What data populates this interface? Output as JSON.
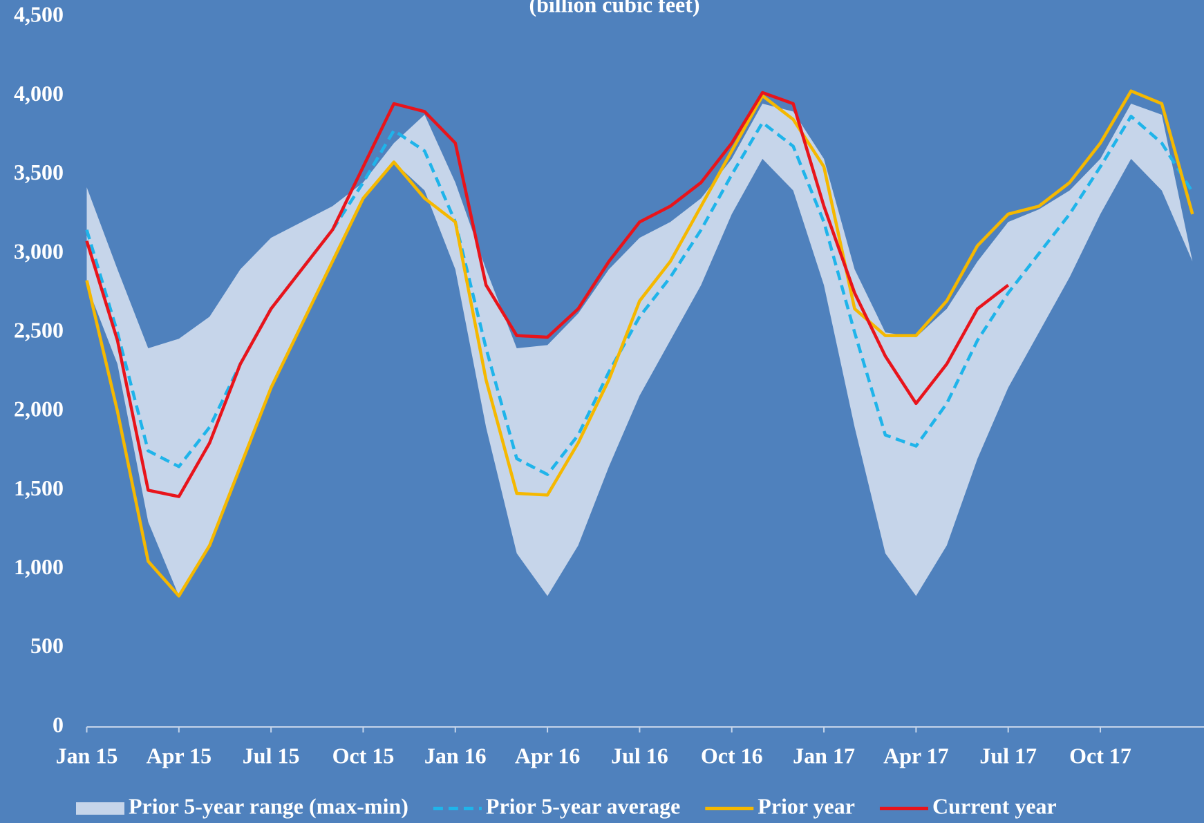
{
  "chart_data": {
    "type": "line",
    "subtitle": "(billion cubic feet)",
    "categories": [
      "Jan 15",
      null,
      null,
      "Apr 15",
      null,
      null,
      "Jul 15",
      null,
      null,
      "Oct 15",
      null,
      null,
      "Jan 16",
      null,
      null,
      "Apr 16",
      null,
      null,
      "Jul 16",
      null,
      null,
      "Oct 16",
      null,
      null,
      "Jan 17",
      null,
      null,
      "Apr 17",
      null,
      null,
      "Jul 17",
      null,
      null,
      "Oct 17",
      null,
      null,
      null
    ],
    "ylim": [
      0,
      4500
    ],
    "yticks": [
      0,
      500,
      {
        "value": 1000,
        "label": "1,000"
      },
      {
        "value": 1500,
        "label": "1,500"
      },
      {
        "value": 2000,
        "label": "2,000"
      },
      {
        "value": 2500,
        "label": "2,500"
      },
      {
        "value": 3000,
        "label": "3,000"
      },
      {
        "value": 3500,
        "label": "3,500"
      },
      {
        "value": 4000,
        "label": "4,000"
      },
      {
        "value": 4500,
        "label": "4,500"
      }
    ],
    "range": {
      "name": "Prior 5-year range (max-min)",
      "color": "#c6d5ea",
      "max": [
        3420,
        2900,
        2400,
        2460,
        2600,
        2900,
        3100,
        3200,
        3300,
        3450,
        3700,
        3880,
        3450,
        2900,
        2400,
        2420,
        2620,
        2900,
        3100,
        3200,
        3350,
        3600,
        3950,
        3900,
        3600,
        2900,
        2500,
        2470,
        2650,
        2950,
        3200,
        3280,
        3400,
        3600,
        3950,
        3880,
        2950
      ],
      "min": [
        2800,
        2300,
        1300,
        830,
        1150,
        1650,
        2150,
        2550,
        2950,
        3350,
        3580,
        3400,
        2900,
        1900,
        1100,
        830,
        1150,
        1650,
        2100,
        2450,
        2800,
        3250,
        3600,
        3400,
        2800,
        1900,
        1100,
        830,
        1150,
        1700,
        2150,
        2500,
        2850,
        3250,
        3600,
        3400,
        2950
      ]
    },
    "series": [
      {
        "name": "Prior 5-year average",
        "color": "#1fb4ea",
        "dashed": true,
        "values": [
          3150,
          2500,
          1750,
          1650,
          1900,
          2300,
          2650,
          2900,
          3150,
          3450,
          3780,
          3650,
          3200,
          2400,
          1700,
          1600,
          1850,
          2250,
          2600,
          2850,
          3150,
          3500,
          3830,
          3680,
          3200,
          2500,
          1850,
          1780,
          2050,
          2450,
          2750,
          3000,
          3250,
          3550,
          3870,
          3700,
          3390
        ]
      },
      {
        "name": "Prior year",
        "color": "#f5b800",
        "values": [
          2830,
          2000,
          1050,
          830,
          1150,
          1650,
          2150,
          2550,
          2950,
          3350,
          3580,
          3350,
          3200,
          2200,
          1480,
          1470,
          1800,
          2200,
          2700,
          2950,
          3300,
          3650,
          4000,
          3850,
          3550,
          2650,
          2480,
          2480,
          2700,
          3050,
          3250,
          3300,
          3450,
          3700,
          4030,
          3950,
          3250
        ]
      },
      {
        "name": "Current year",
        "color": "#e8141b",
        "values": [
          3080,
          2450,
          1500,
          1460,
          1800,
          2300,
          2650,
          2900,
          3150,
          3550,
          3950,
          3900,
          3700,
          2800,
          2480,
          2470,
          2650,
          2950,
          3200,
          3300,
          3450,
          3700,
          4020,
          3950,
          3300,
          2750,
          2350,
          2050,
          2300,
          2650,
          2800,
          null,
          null,
          null,
          null,
          null,
          null
        ]
      }
    ]
  }
}
